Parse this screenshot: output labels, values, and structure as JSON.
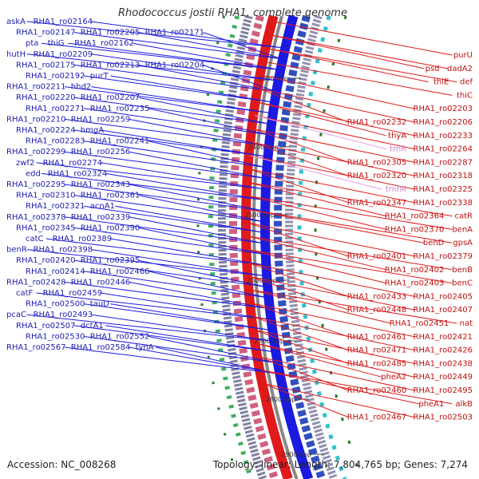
{
  "title": "Rhodococcus jostii RHA1, complete genome",
  "footer": {
    "accession": "Accession: NC_008268",
    "stats": "Topology: linear; Length: 7,804,765 bp; Genes: 7,274"
  },
  "colors": {
    "forward": "#1a1ae0",
    "reverse": "#e01a1a",
    "rna": "#e8a0e0",
    "backbone": "#888888",
    "cds_stripe": "#2a7a2a"
  },
  "kbp_ticks": [
    {
      "label": "2300 kbp"
    },
    {
      "label": "2400 kbp"
    },
    {
      "label": "2500 kbp"
    },
    {
      "label": "2600 kbp"
    },
    {
      "label": "2700 kbp"
    },
    {
      "label": "2800 kbp"
    },
    {
      "label": "2900 kbp"
    }
  ],
  "left_labels": [
    "askA",
    "RHA1_ro02164",
    "RHA1_ro02147",
    "RHA1_ro02205",
    "RHA1_ro02171",
    "pta",
    "thiG",
    "RHA1_ro02162",
    "hutH",
    "RHA1_ro02209",
    "RHA1_ro02175",
    "RHA1_ro02213",
    "RHA1_ro02204",
    "RHA1_ro02192",
    "purT",
    "RHA1_ro02211",
    "hhd2",
    "RHA1_ro02220",
    "RHA1_ro02207",
    "RHA1_ro02271",
    "RHA1_ro02235",
    "RHA1_ro02210",
    "RHA1_ro02259",
    "RHA1_ro02224",
    "hmgA",
    "RHA1_ro02283",
    "RHA1_ro02241",
    "RHA1_ro02299",
    "RHA1_ro02256",
    "zwf2",
    "RHA1_ro02274",
    "edd",
    "RHA1_ro02324",
    "RHA1_ro02295",
    "RHA1_ro02343",
    "RHA1_ro02310",
    "RHA1_ro02361",
    "RHA1_ro02321",
    "acnA1",
    "RHA1_ro02378",
    "RHA1_ro02339",
    "RHA1_ro02345",
    "RHA1_ro02390",
    "catC",
    "RHA1_ro02389",
    "benR",
    "RHA1_ro02398",
    "RHA1_ro02420",
    "RHA1_ro02395",
    "RHA1_ro02414",
    "RHA1_ro02466",
    "RHA1_ro02428",
    "RHA1_ro02446",
    "catF",
    "RHA1_ro02459",
    "RHA1_ro02500",
    "tauD",
    "pcaC",
    "RHA1_ro02493",
    "RHA1_ro02507",
    "dctA1",
    "RHA1_ro02530",
    "RHA1_ro02552",
    "RHA1_ro02567",
    "RHA1_ro02584",
    "tynA"
  ],
  "right_labels": [
    "purU",
    "dadA2",
    "psd",
    "def",
    "thiE",
    "thiC",
    "RHA1_ro02203",
    "RHA1_ro02206",
    "RHA1_ro02232",
    "RHA1_ro02233",
    "thyA",
    "RHA1_ro02264",
    "trnR",
    "RHA1_ro02287",
    "RHA1_ro02305",
    "RHA1_ro02318",
    "RHA1_ro02320",
    "RHA1_ro02325",
    "trnfM",
    "RHA1_ro02338",
    "RHA1_ro02347",
    "catR",
    "RHA1_ro02364",
    "benA",
    "RHA1_ro02370",
    "gpsA",
    "benD",
    "RHA1_ro02379",
    "RHA1_ro02401",
    "benB",
    "RHA1_ro02402",
    "benC",
    "RHA1_ro02403",
    "RHA1_ro02405",
    "RHA1_ro02433",
    "RHA1_ro02407",
    "RHA1_ro02448",
    "nat",
    "RHA1_ro02451",
    "RHA1_ro02421",
    "RHA1_ro02461",
    "RHA1_ro02426",
    "RHA1_ro02471",
    "RHA1_ro02438",
    "RHA1_ro02485",
    "RHA1_ro02449",
    "pheA2",
    "RHA1_ro02495",
    "RHA1_ro02460",
    "alkB",
    "pheA1",
    "RHA1_ro02503",
    "RHA1_ro02467"
  ]
}
